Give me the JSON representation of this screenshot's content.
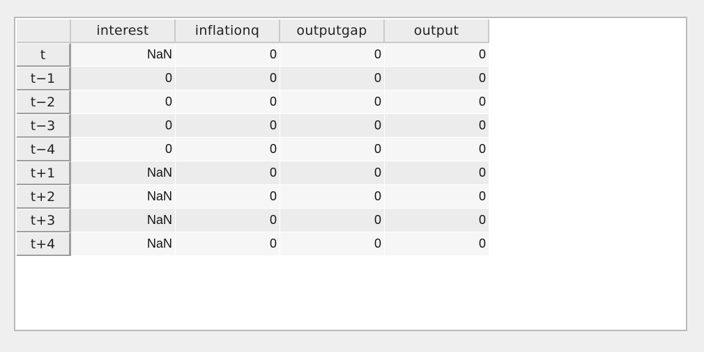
{
  "table": {
    "columns": [
      "interest",
      "inflationq",
      "outputgap",
      "output"
    ],
    "rows": [
      {
        "label": "t",
        "values": [
          "NaN",
          "0",
          "0",
          "0"
        ]
      },
      {
        "label": "t−1",
        "values": [
          "0",
          "0",
          "0",
          "0"
        ]
      },
      {
        "label": "t−2",
        "values": [
          "0",
          "0",
          "0",
          "0"
        ]
      },
      {
        "label": "t−3",
        "values": [
          "0",
          "0",
          "0",
          "0"
        ]
      },
      {
        "label": "t−4",
        "values": [
          "0",
          "0",
          "0",
          "0"
        ]
      },
      {
        "label": "t+1",
        "values": [
          "NaN",
          "0",
          "0",
          "0"
        ]
      },
      {
        "label": "t+2",
        "values": [
          "NaN",
          "0",
          "0",
          "0"
        ]
      },
      {
        "label": "t+3",
        "values": [
          "NaN",
          "0",
          "0",
          "0"
        ]
      },
      {
        "label": "t+4",
        "values": [
          "NaN",
          "0",
          "0",
          "0"
        ]
      }
    ]
  }
}
